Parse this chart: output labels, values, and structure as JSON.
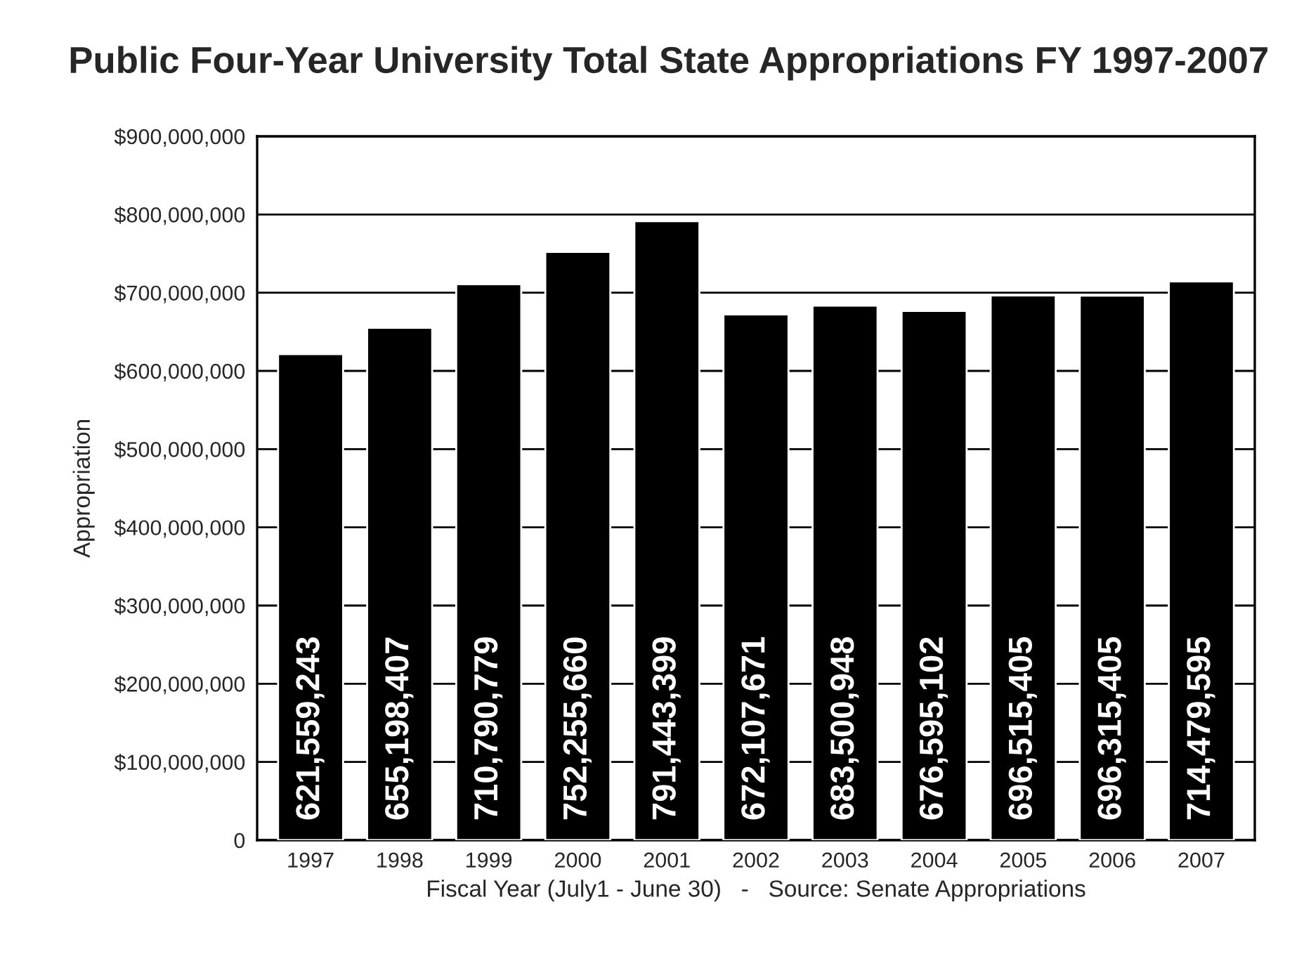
{
  "chart_data": {
    "type": "bar",
    "title": "Public Four-Year University Total State Appropriations FY 1997-2007",
    "xlabel": "Fiscal Year (July1 - June 30)   -   Source: Senate Appropriations",
    "ylabel": "Appropriation",
    "categories": [
      "1997",
      "1998",
      "1999",
      "2000",
      "2001",
      "2002",
      "2003",
      "2004",
      "2005",
      "2006",
      "2007"
    ],
    "values": [
      621559243,
      655198407,
      710790779,
      752255660,
      791443399,
      672107671,
      683500948,
      676595102,
      696515405,
      696315405,
      714479595
    ],
    "value_labels": [
      "621,559,243",
      "655,198,407",
      "710,790,779",
      "752,255,660",
      "791,443,399",
      "672,107,671",
      "683,500,948",
      "676,595,102",
      "696,515,405",
      "696,315,405",
      "714,479,595"
    ],
    "color": "#000000",
    "ylim": [
      0,
      900000000
    ],
    "yticks": [
      0,
      {
        "value": 100000000,
        "label": "$100,000,000"
      },
      {
        "value": 200000000,
        "label": "$200,000,000"
      },
      {
        "value": 300000000,
        "label": "$300,000,000"
      },
      {
        "value": 400000000,
        "label": "$400,000,000"
      },
      {
        "value": 500000000,
        "label": "$500,000,000"
      },
      {
        "value": 600000000,
        "label": "$600,000,000"
      },
      {
        "value": 700000000,
        "label": "$700,000,000"
      },
      {
        "value": 800000000,
        "label": "$800,000,000"
      },
      {
        "value": 900000000,
        "label": "$900,000,000"
      }
    ],
    "grid": "y",
    "legend": false
  }
}
